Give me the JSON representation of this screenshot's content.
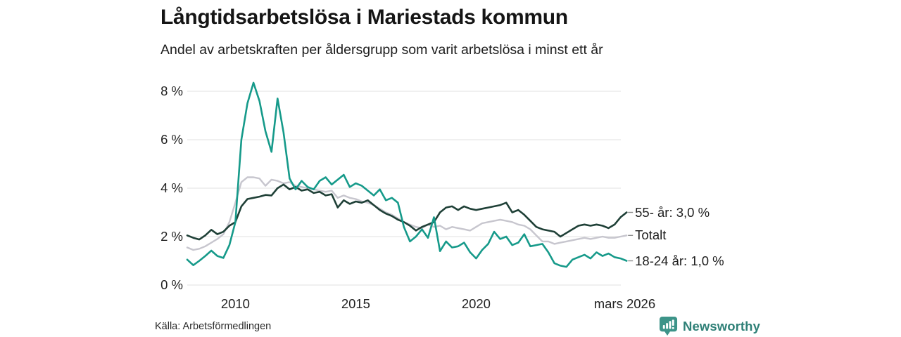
{
  "title": "Långtidsarbetslösa i Mariestads kommun",
  "subtitle": "Andel av arbetskraften per åldersgrupp som varit arbetslösa i minst ett år",
  "source": "Källa: Arbetsförmedlingen",
  "branding": {
    "name": "Newsworthy"
  },
  "colors": {
    "teal_series": "#169a8a",
    "dark_series": "#1f4037",
    "gray_series": "#c7c6ce",
    "gridline": "#e6e6e6",
    "connector": "#8c8c8c",
    "text": "#1d1d1d",
    "logo_icon": "#3d9489",
    "logo_text": "#2f8077"
  },
  "chart_data": {
    "type": "line",
    "x_start": 2008.0,
    "x_step": 0.25,
    "xlim": [
      2008.0,
      2026.25
    ],
    "ylim": [
      0,
      8.6
    ],
    "grid": "horizontal",
    "legend_position": "right-end-labels",
    "yticks": {
      "values": [
        0,
        2,
        4,
        6,
        8
      ],
      "labels": [
        "0 %",
        "2 %",
        "4 %",
        "6 %",
        "8 %"
      ]
    },
    "xticks": [
      {
        "label": "2010",
        "x": 2010
      },
      {
        "label": "2015",
        "x": 2015
      },
      {
        "label": "2020",
        "x": 2020
      },
      {
        "label": "mars 2026",
        "x": 2026.17
      }
    ],
    "series": [
      {
        "name": "Totalt",
        "end_label": "Totalt",
        "color": "#c7c6ce",
        "width": 2.4,
        "values": [
          1.55,
          1.45,
          1.5,
          1.6,
          1.75,
          1.9,
          2.1,
          2.6,
          3.4,
          4.25,
          4.45,
          4.45,
          4.4,
          4.1,
          4.35,
          4.3,
          4.2,
          4.25,
          4.1,
          4.05,
          4.0,
          3.95,
          3.9,
          3.85,
          3.9,
          3.6,
          3.7,
          3.6,
          3.55,
          3.45,
          3.4,
          3.3,
          3.15,
          3.0,
          2.9,
          2.75,
          2.6,
          2.5,
          2.4,
          2.35,
          2.5,
          2.4,
          2.45,
          2.3,
          2.4,
          2.35,
          2.3,
          2.25,
          2.4,
          2.55,
          2.6,
          2.65,
          2.7,
          2.65,
          2.6,
          2.5,
          2.45,
          2.3,
          2.05,
          1.8,
          1.8,
          1.7,
          1.75,
          1.8,
          1.85,
          1.9,
          1.95,
          1.9,
          1.95,
          2.0,
          1.95,
          1.95,
          2.0,
          2.05
        ]
      },
      {
        "name": "55- år",
        "end_label": "55- år: 3,0 %",
        "color": "#1f4037",
        "width": 2.6,
        "values": [
          2.05,
          1.95,
          1.88,
          2.05,
          2.28,
          2.1,
          2.2,
          2.45,
          2.6,
          3.25,
          3.55,
          3.6,
          3.65,
          3.72,
          3.7,
          4.0,
          4.15,
          3.95,
          4.05,
          3.9,
          3.95,
          3.8,
          3.85,
          3.7,
          3.75,
          3.2,
          3.5,
          3.35,
          3.45,
          3.4,
          3.5,
          3.3,
          3.1,
          2.95,
          2.85,
          2.7,
          2.6,
          2.45,
          2.25,
          2.4,
          2.5,
          2.6,
          3.0,
          3.2,
          3.25,
          3.1,
          3.25,
          3.15,
          3.1,
          3.15,
          3.2,
          3.25,
          3.3,
          3.4,
          3.0,
          3.1,
          2.9,
          2.65,
          2.4,
          2.3,
          2.25,
          2.2,
          2.0,
          2.15,
          2.3,
          2.45,
          2.5,
          2.45,
          2.5,
          2.45,
          2.35,
          2.5,
          2.8,
          3.0
        ]
      },
      {
        "name": "18-24 år",
        "end_label": "18-24 år: 1,0 %",
        "color": "#169a8a",
        "width": 2.6,
        "values": [
          1.05,
          0.82,
          1.0,
          1.2,
          1.42,
          1.2,
          1.12,
          1.65,
          2.6,
          6.0,
          7.5,
          8.35,
          7.6,
          6.35,
          5.5,
          7.7,
          6.3,
          4.4,
          3.95,
          4.3,
          4.05,
          3.95,
          4.3,
          4.45,
          4.15,
          4.35,
          4.55,
          4.05,
          4.2,
          4.1,
          3.9,
          3.7,
          3.95,
          3.5,
          3.6,
          3.4,
          2.4,
          1.8,
          2.0,
          2.3,
          1.95,
          2.8,
          1.4,
          1.8,
          1.55,
          1.6,
          1.75,
          1.35,
          1.1,
          1.45,
          1.7,
          2.2,
          1.9,
          2.0,
          1.65,
          1.75,
          2.1,
          1.6,
          1.65,
          1.7,
          1.35,
          0.9,
          0.8,
          0.75,
          1.05,
          1.15,
          1.25,
          1.1,
          1.35,
          1.2,
          1.3,
          1.15,
          1.1,
          1.0
        ]
      }
    ]
  }
}
